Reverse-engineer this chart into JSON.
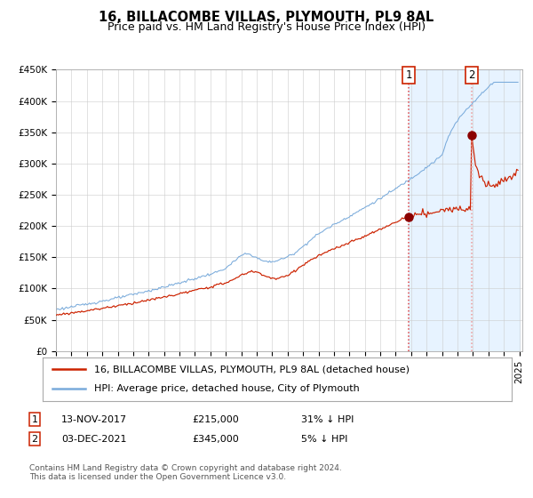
{
  "title": "16, BILLACOMBE VILLAS, PLYMOUTH, PL9 8AL",
  "subtitle": "Price paid vs. HM Land Registry's House Price Index (HPI)",
  "ylim": [
    0,
    450000
  ],
  "yticks": [
    0,
    50000,
    100000,
    150000,
    200000,
    250000,
    300000,
    350000,
    400000,
    450000
  ],
  "ytick_labels": [
    "£0",
    "£50K",
    "£100K",
    "£150K",
    "£200K",
    "£250K",
    "£300K",
    "£350K",
    "£400K",
    "£450K"
  ],
  "hpi_color": "#7aabdb",
  "price_color": "#cc2200",
  "dot_color": "#8b0000",
  "vline1_color": "#dd4444",
  "vline2_color": "#ee9999",
  "shade_color": "#ddeeff",
  "t1_year": 2017.87,
  "t1_price": 215000,
  "t1_label": "13-NOV-2017",
  "t1_pct": "31% ↓ HPI",
  "t2_year": 2021.92,
  "t2_price": 345000,
  "t2_label": "03-DEC-2021",
  "t2_pct": "5% ↓ HPI",
  "legend_line1": "16, BILLACOMBE VILLAS, PLYMOUTH, PL9 8AL (detached house)",
  "legend_line2": "HPI: Average price, detached house, City of Plymouth",
  "footnote": "Contains HM Land Registry data © Crown copyright and database right 2024.\nThis data is licensed under the Open Government Licence v3.0.",
  "title_fontsize": 10.5,
  "subtitle_fontsize": 9,
  "tick_fontsize": 7.5,
  "legend_fontsize": 8,
  "footnote_fontsize": 6.5
}
